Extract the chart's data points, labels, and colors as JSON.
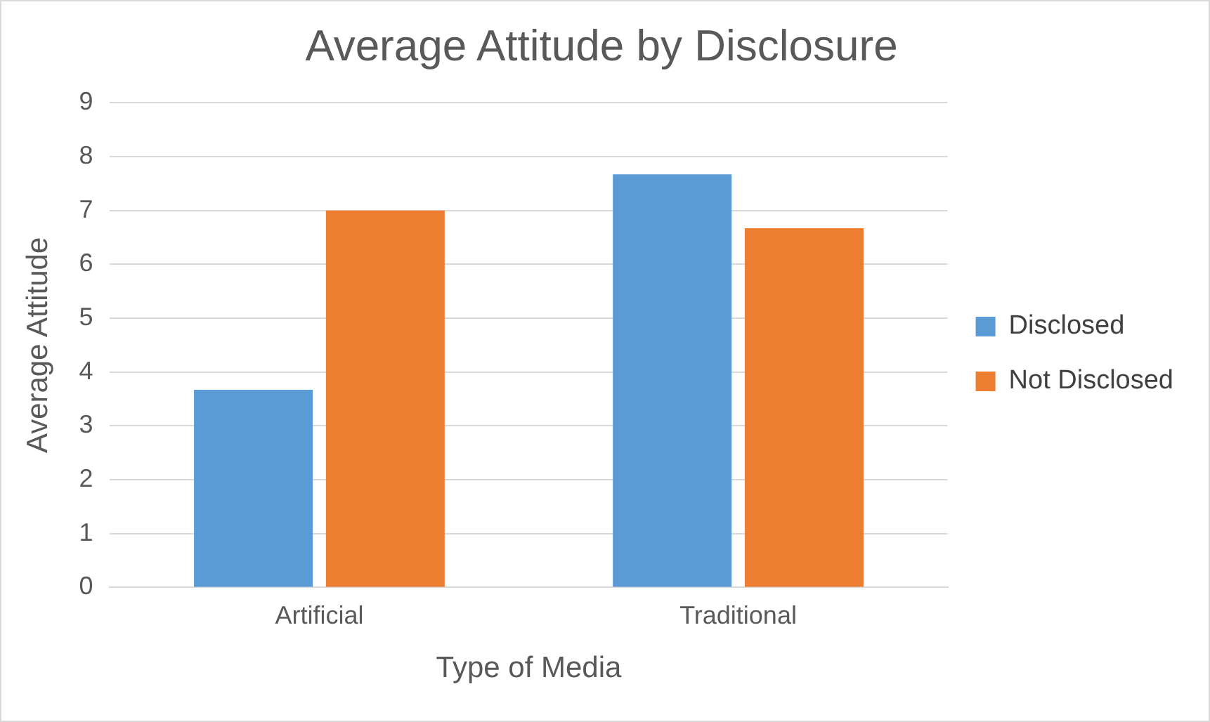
{
  "chart_data": {
    "type": "bar",
    "title": "Average Attitude by Disclosure",
    "xlabel": "Type of Media",
    "ylabel": "Average Attitude",
    "categories": [
      "Artificial",
      "Traditional"
    ],
    "series": [
      {
        "name": "Disclosed",
        "color": "#5b9bd5",
        "values": [
          3.67,
          7.67
        ]
      },
      {
        "name": "Not Disclosed",
        "color": "#ed7d31",
        "values": [
          7.0,
          6.67
        ]
      }
    ],
    "ylim": [
      0,
      9
    ],
    "yticks": [
      0,
      1,
      2,
      3,
      4,
      5,
      6,
      7,
      8,
      9
    ],
    "grid": "y",
    "legend": "right"
  }
}
